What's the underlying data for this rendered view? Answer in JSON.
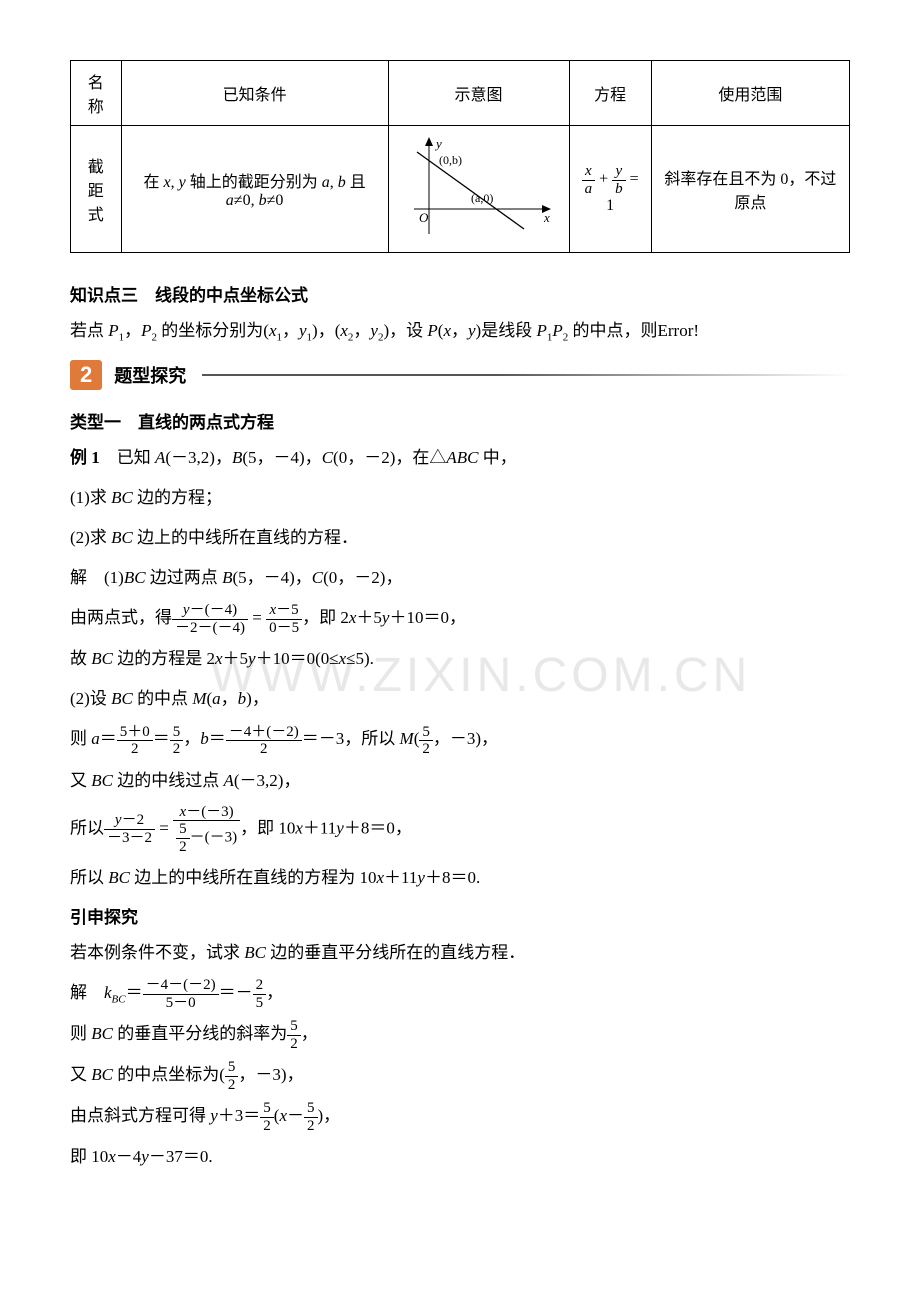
{
  "table": {
    "headers": [
      "名称",
      "已知条件",
      "示意图",
      "方程",
      "使用范围"
    ],
    "row": {
      "name": "截距\n式",
      "condition_html": "在 <span class='ital'>x</span>, <span class='ital'>y</span> 轴上的截距分别为 <span class='ital'>a</span>, <span class='ital'>b</span> 且 <span class='ital'>a</span>≠0, <span class='ital'>b</span>≠0",
      "equation_html": "<span class='frac'><span class='num ital'>x</span><span class='den ital'>a</span></span> + <span class='frac'><span class='num ital'>y</span><span class='den ital'>b</span></span> = 1",
      "scope": "斜率存在且不为 0，不过原点",
      "graph": {
        "width": 160,
        "height": 110,
        "axis_color": "#000000",
        "line_color": "#000000",
        "labels": {
          "y": "y",
          "x": "x",
          "O": "O",
          "b": "(0,b)",
          "a": "(a,0)"
        }
      }
    }
  },
  "kp3_title": "知识点三　线段的中点坐标公式",
  "kp3_text_html": "若点 <span class='ital'>P</span><span class='sub'>1</span>，<span class='ital'>P</span><span class='sub'>2</span> 的坐标分别为(<span class='ital'>x</span><span class='sub'>1</span>，<span class='ital'>y</span><span class='sub'>1</span>)，(<span class='ital'>x</span><span class='sub'>2</span>，<span class='ital'>y</span><span class='sub'>2</span>)，设 <span class='ital'>P</span>(<span class='ital'>x</span>，<span class='ital'>y</span>)是线段 <span class='ital'>P</span><span class='sub'>1</span><span class='ital'>P</span><span class='sub'>2</span> 的中点，则Error!",
  "section2": {
    "num": "2",
    "title": "题型探究"
  },
  "type1_title": "类型一　直线的两点式方程",
  "ex1_label_html": "<b>例 1</b>　已知 <span class='ital'>A</span>(－3,2)，<span class='ital'>B</span>(5，－4)，<span class='ital'>C</span>(0，－2)，在△<span class='ital'>ABC</span> 中，",
  "q1_html": "(1)求 <span class='ital'>BC</span> 边的方程；",
  "q2_html": "(2)求 <span class='ital'>BC</span> 边上的中线所在直线的方程．",
  "sol_1_html": "解　(1)<span class='ital'>BC</span> 边过两点 <span class='ital'>B</span>(5，－4)，<span class='ital'>C</span>(0，－2)，",
  "sol_2_html": "由两点式，得<span class='frac'><span class='num'><span class='ital'>y</span>－(－4)</span><span class='den'>－2－(－4)</span></span> = <span class='frac'><span class='num'><span class='ital'>x</span>－5</span><span class='den'>0－5</span></span>，即 2<span class='ital'>x</span>＋5<span class='ital'>y</span>＋10＝0，",
  "sol_3_html": "故 <span class='ital'>BC</span> 边的方程是 2<span class='ital'>x</span>＋5<span class='ital'>y</span>＋10＝0(0≤<span class='ital'>x</span>≤5).",
  "sol_4_html": "(2)设 <span class='ital'>BC</span> 的中点 <span class='ital'>M</span>(<span class='ital'>a</span>，<span class='ital'>b</span>)，",
  "sol_5_html": "则 <span class='ital'>a</span>＝<span class='frac'><span class='num'>5＋0</span><span class='den'>2</span></span>＝<span class='frac'><span class='num'>5</span><span class='den'>2</span></span>，<span class='ital'>b</span>＝<span class='frac'><span class='num'>－4＋(－2)</span><span class='den'>2</span></span>＝－3，所以 <span class='ital'>M</span>(<span class='frac'><span class='num'>5</span><span class='den'>2</span></span>，－3)，",
  "sol_6_html": "又 <span class='ital'>BC</span> 边的中线过点 <span class='ital'>A</span>(－3,2)，",
  "sol_7_html": "所以<span class='frac'><span class='num'><span class='ital'>y</span>－2</span><span class='den'>－3－2</span></span> = <span class='frac'><span class='num'><span class='ital'>x</span>－(－3)</span><span class='den'><span class='frac'><span class='num'>5</span><span class='den'>2</span></span>－(－3)</span></span>，即 10<span class='ital'>x</span>＋11<span class='ital'>y</span>＋8＝0，",
  "sol_8_html": "所以 <span class='ital'>BC</span> 边上的中线所在直线的方程为 10<span class='ital'>x</span>＋11<span class='ital'>y</span>＋8＝0.",
  "ext_title": "引申探究",
  "ext_q_html": "若本例条件不变，试求 <span class='ital'>BC</span> 边的垂直平分线所在的直线方程．",
  "ext_1_html": "解　<span class='ital'>k<span class='sub'>BC</span></span>＝<span class='frac'><span class='num'>－4－(－2)</span><span class='den'>5－0</span></span>＝－<span class='frac'><span class='num'>2</span><span class='den'>5</span></span>，",
  "ext_2_html": "则 <span class='ital'>BC</span> 的垂直平分线的斜率为<span class='frac'><span class='num'>5</span><span class='den'>2</span></span>，",
  "ext_3_html": "又 <span class='ital'>BC</span> 的中点坐标为(<span class='frac'><span class='num'>5</span><span class='den'>2</span></span>，－3)，",
  "ext_4_html": "由点斜式方程可得 <span class='ital'>y</span>＋3＝<span class='frac'><span class='num'>5</span><span class='den'>2</span></span>(<span class='ital'>x</span>－<span class='frac'><span class='num'>5</span><span class='den'>2</span></span>)，",
  "ext_5_html": "即 10<span class='ital'>x</span>－4<span class='ital'>y</span>－37＝0.",
  "watermark": "WWW.ZIXIN.COM.CN"
}
